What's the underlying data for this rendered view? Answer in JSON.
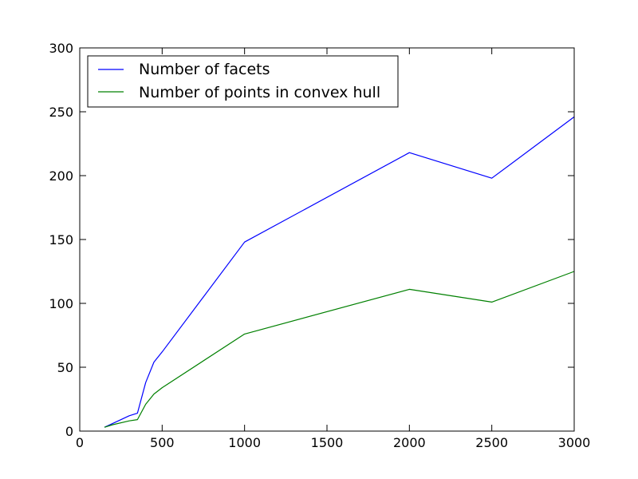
{
  "chart_data": {
    "type": "line",
    "title": "",
    "xlabel": "",
    "ylabel": "",
    "xlim": [
      0,
      3000
    ],
    "ylim": [
      0,
      300
    ],
    "x_ticks": [
      0,
      500,
      1000,
      1500,
      2000,
      2500,
      3000
    ],
    "y_ticks": [
      0,
      50,
      100,
      150,
      200,
      250,
      300
    ],
    "grid": false,
    "legend_position": "top-left",
    "series": [
      {
        "name": "Number of facets",
        "color": "#0000ff",
        "points": [
          [
            150,
            3
          ],
          [
            200,
            6
          ],
          [
            300,
            12
          ],
          [
            350,
            14
          ],
          [
            400,
            38
          ],
          [
            450,
            54
          ],
          [
            500,
            62
          ],
          [
            1000,
            148
          ],
          [
            2000,
            218
          ],
          [
            2500,
            198
          ],
          [
            3000,
            246
          ]
        ]
      },
      {
        "name": "Number of points in convex hull",
        "color": "#008000",
        "points": [
          [
            150,
            3
          ],
          [
            200,
            5
          ],
          [
            300,
            8
          ],
          [
            350,
            9
          ],
          [
            400,
            21
          ],
          [
            450,
            29
          ],
          [
            500,
            34
          ],
          [
            1000,
            76
          ],
          [
            2000,
            111
          ],
          [
            2500,
            101
          ],
          [
            3000,
            125
          ]
        ]
      }
    ]
  }
}
